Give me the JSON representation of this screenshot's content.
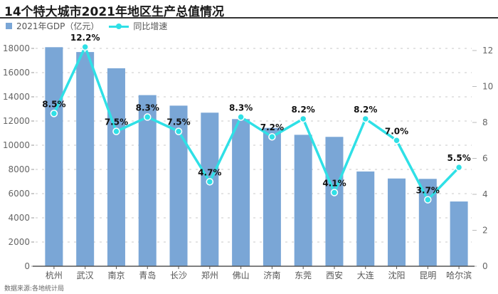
{
  "chart_data": {
    "type": "bar",
    "title": "14个特大城市2021年地区生产总值情况",
    "categories": [
      "杭州",
      "武汉",
      "南京",
      "青岛",
      "长沙",
      "郑州",
      "佛山",
      "济南",
      "东莞",
      "西安",
      "大连",
      "沈阳",
      "昆明",
      "哈尔滨"
    ],
    "series": [
      {
        "name": "2021年GDP（亿元）",
        "type": "bar",
        "axis": "left",
        "color": "#7aa6d6",
        "values": [
          18100,
          17700,
          16360,
          14140,
          13270,
          12690,
          12160,
          11430,
          10860,
          10690,
          7830,
          7250,
          7220,
          5350
        ]
      },
      {
        "name": "同比增速",
        "type": "line",
        "axis": "right",
        "color": "#2fe0e6",
        "values": [
          8.5,
          12.2,
          7.5,
          8.3,
          7.5,
          4.7,
          8.3,
          7.2,
          8.2,
          4.1,
          8.2,
          7.0,
          3.7,
          5.5
        ],
        "labels": [
          "8.5%",
          "12.2%",
          "7.5%",
          "8.3%",
          "7.5%",
          "4.7%",
          "8.3%",
          "7.2%",
          "8.2%",
          "4.1%",
          "8.2%",
          "7.0%",
          "3.7%",
          "5.5%"
        ]
      }
    ],
    "y_left": {
      "lim": [
        0,
        18000
      ],
      "ticks": [
        0,
        2000,
        4000,
        6000,
        8000,
        10000,
        12000,
        14000,
        16000,
        18000
      ]
    },
    "y_right": {
      "lim": [
        0,
        12
      ],
      "ticks": [
        0,
        2,
        4,
        6,
        8,
        10,
        12
      ]
    },
    "grid": true,
    "legend_position": "top-left"
  },
  "legend": {
    "bar_label": "2021年GDP（亿元）",
    "line_label": "同比增速"
  },
  "source": "数据来源:各地统计局"
}
